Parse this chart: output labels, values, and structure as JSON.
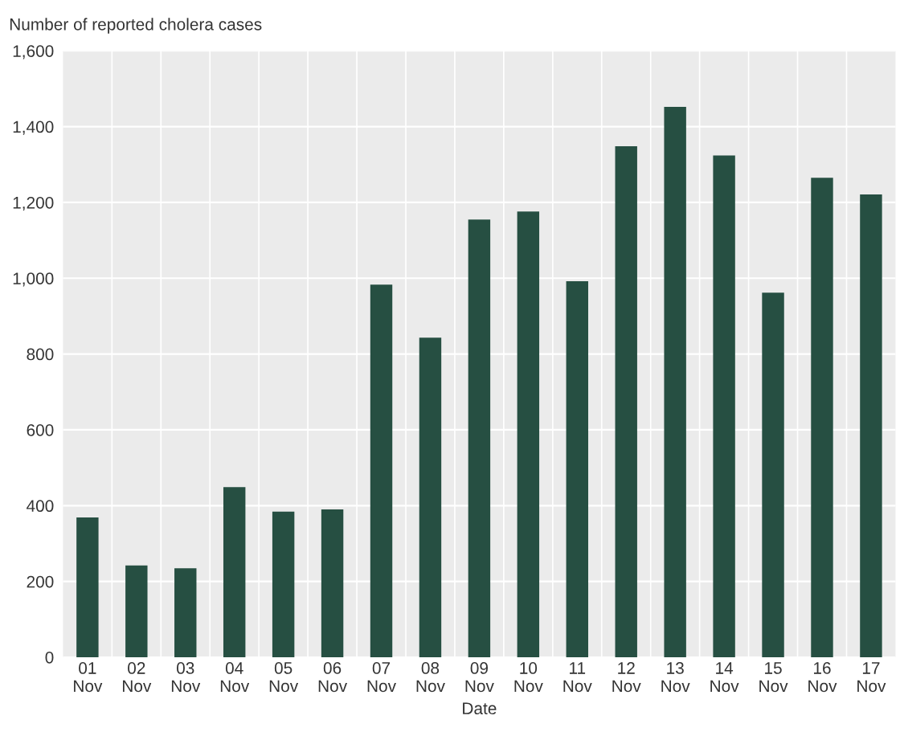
{
  "chart_data": {
    "type": "bar",
    "ylabel": "Number of reported cholera cases",
    "xlabel": "Date",
    "categories": [
      "01\nNov",
      "02\nNov",
      "03\nNov",
      "04\nNov",
      "05\nNov",
      "06\nNov",
      "07\nNov",
      "08\nNov",
      "09\nNov",
      "10\nNov",
      "11\nNov",
      "12\nNov",
      "13\nNov",
      "14\nNov",
      "15\nNov",
      "16\nNov",
      "17\nNov"
    ],
    "values": [
      369,
      242,
      235,
      449,
      384,
      390,
      983,
      843,
      1155,
      1176,
      992,
      1348,
      1452,
      1324,
      962,
      1265,
      1221
    ],
    "color": "#264f42",
    "ylim": [
      0,
      1600
    ],
    "yticks": [
      {
        "value": 0,
        "label": "0"
      },
      {
        "value": 200,
        "label": "200"
      },
      {
        "value": 400,
        "label": "400"
      },
      {
        "value": 600,
        "label": "600"
      },
      {
        "value": 800,
        "label": "800"
      },
      {
        "value": 1000,
        "label": "1,000"
      },
      {
        "value": 1200,
        "label": "1,200"
      },
      {
        "value": 1400,
        "label": "1,400"
      },
      {
        "value": 1600,
        "label": "1,600"
      }
    ],
    "grid": true
  }
}
